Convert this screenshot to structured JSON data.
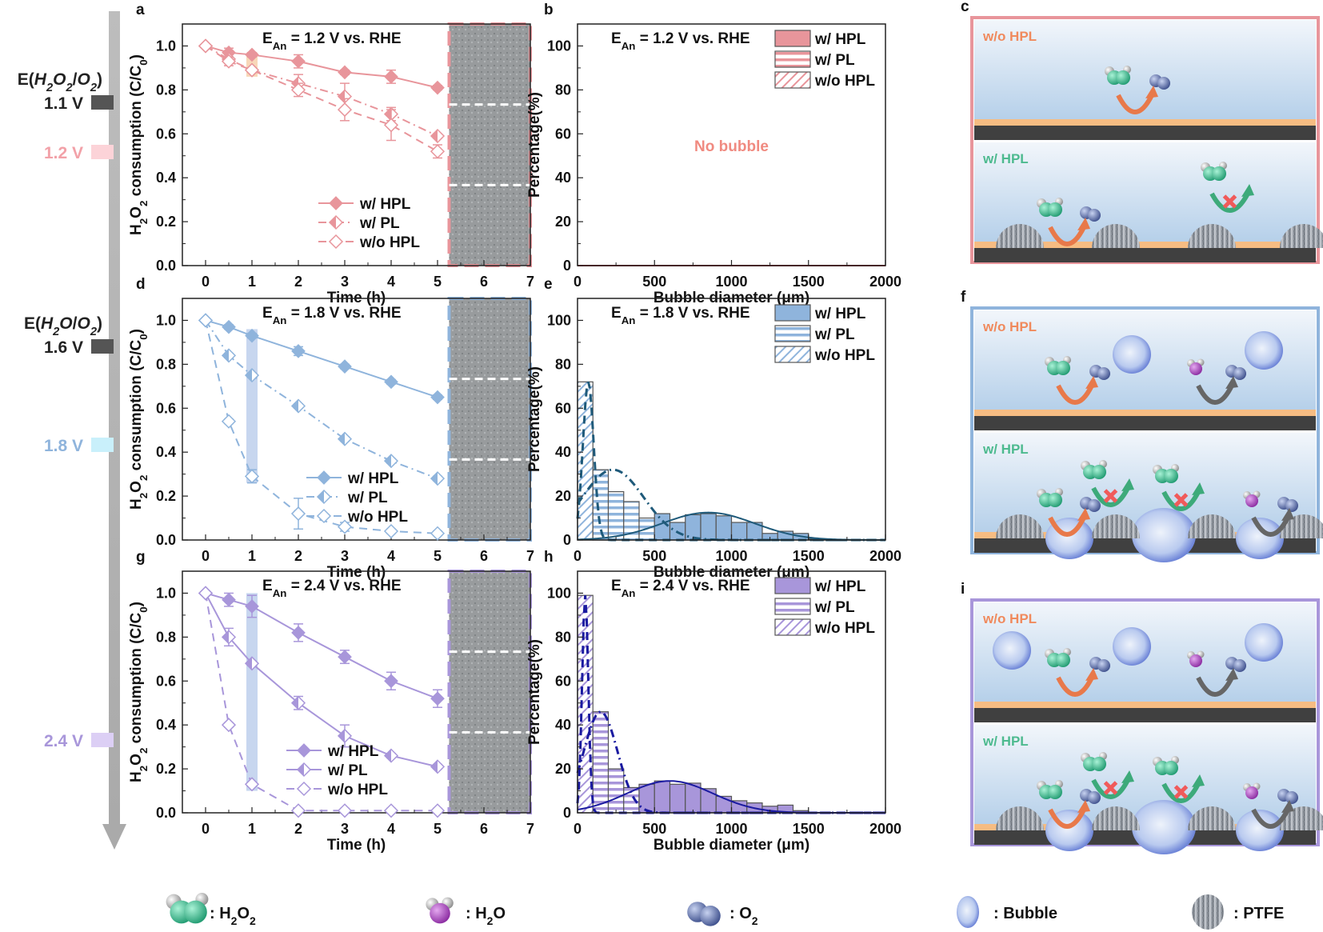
{
  "figure": {
    "potential_scale": {
      "markers": [
        {
          "label_top": "E(H2O2/O2)",
          "value": "1.1 V",
          "color": "#555555",
          "kind": "reference"
        },
        {
          "label_top": "",
          "value": "1.2 V",
          "color": "#f2a1a8",
          "kind": "applied"
        },
        {
          "label_top": "E(H2O/O2)",
          "value": "1.6 V",
          "color": "#555555",
          "kind": "reference"
        },
        {
          "label_top": "",
          "value": "1.8 V",
          "color": "#8fb4dc",
          "kind": "applied"
        },
        {
          "label_top": "",
          "value": "2.4 V",
          "color": "#a896da",
          "kind": "applied"
        }
      ]
    },
    "panel_labels": [
      "a",
      "b",
      "c",
      "d",
      "e",
      "f",
      "g",
      "h",
      "i"
    ],
    "schematics": [
      {
        "panel": "c",
        "border_color": "#e8959b",
        "top_label": "w/o HPL",
        "bottom_label": "w/ HPL",
        "bubbles": false
      },
      {
        "panel": "f",
        "border_color": "#8fb4dc",
        "top_label": "w/o HPL",
        "bottom_label": "w/ HPL",
        "bubbles": true
      },
      {
        "panel": "i",
        "border_color": "#a896da",
        "top_label": "w/o HPL",
        "bottom_label": "w/ HPL",
        "bubbles": true
      }
    ],
    "legend_bottom": [
      {
        "icon": "h2o2-molecule-icon",
        "label": ": H2O2"
      },
      {
        "icon": "h2o-molecule-icon",
        "label": ": H2O"
      },
      {
        "icon": "o2-molecule-icon",
        "label": ": O2"
      },
      {
        "icon": "bubble-icon",
        "label": ": Bubble"
      },
      {
        "icon": "ptfe-icon",
        "label": ": PTFE"
      }
    ],
    "colors": {
      "pink": "#e8959b",
      "blue": "#8fb4dc",
      "purple": "#a896da",
      "orange_label": "#f08a5d",
      "green_label": "#4dba8f",
      "no_bubble_text": "#f08a80"
    }
  },
  "chart_data": [
    {
      "panel": "a",
      "type": "line",
      "title": "EAn = 1.2 V vs. RHE",
      "xlabel": "Time (h)",
      "ylabel": "H2O2 consumption (C/C0)",
      "xlim": [
        -0.5,
        7
      ],
      "ylim": [
        0,
        1.1
      ],
      "xticks": [
        0,
        1,
        2,
        3,
        4,
        5,
        6,
        7
      ],
      "yticks": [
        0.0,
        0.2,
        0.4,
        0.6,
        0.8,
        1.0
      ],
      "color": "#e8959b",
      "legend_position": "bottom-right",
      "series": [
        {
          "name": "w/ HPL",
          "marker": "filled-diamond",
          "line": "solid",
          "x": [
            0,
            0.5,
            1,
            2,
            3,
            4,
            5
          ],
          "y": [
            1.0,
            0.97,
            0.96,
            0.93,
            0.88,
            0.86,
            0.81
          ],
          "err": [
            0,
            0.02,
            0.01,
            0.03,
            0.01,
            0.03,
            0.01
          ]
        },
        {
          "name": "w/ PL",
          "marker": "half-diamond",
          "line": "dash-dot",
          "x": [
            0,
            0.5,
            1,
            2,
            3,
            4,
            5
          ],
          "y": [
            1.0,
            0.94,
            0.89,
            0.83,
            0.77,
            0.69,
            0.59
          ],
          "err": [
            0,
            0.02,
            0.01,
            0.04,
            0.06,
            0.03,
            0.01
          ]
        },
        {
          "name": "w/o HPL",
          "marker": "open-diamond",
          "line": "dash",
          "x": [
            0,
            0.5,
            1,
            2,
            3,
            4,
            5
          ],
          "y": [
            1.0,
            0.93,
            0.89,
            0.8,
            0.71,
            0.64,
            0.52
          ],
          "err": [
            0,
            0.02,
            0.01,
            0.03,
            0.05,
            0.07,
            0.03
          ]
        }
      ],
      "highlight_x": 1
    },
    {
      "panel": "b",
      "type": "bar",
      "title": "EAn = 1.2 V vs. RHE",
      "xlabel": "Bubble diameter (μm)",
      "ylabel": "Percentage(%)",
      "xlim": [
        0,
        2000
      ],
      "ylim": [
        0,
        110
      ],
      "xticks": [
        0,
        500,
        1000,
        1500,
        2000
      ],
      "yticks": [
        0,
        20,
        40,
        60,
        80,
        100
      ],
      "color": "#e8959b",
      "annotation": "No bubble",
      "legend_position": "top-right",
      "series": [
        {
          "name": "w/ HPL",
          "fill": "solid",
          "bins": []
        },
        {
          "name": "w/ PL",
          "fill": "horizontal",
          "bins": []
        },
        {
          "name": "w/o HPL",
          "fill": "diagonal",
          "bins": []
        }
      ]
    },
    {
      "panel": "d",
      "type": "line",
      "title": "EAn = 1.8 V vs. RHE",
      "xlabel": "Time (h)",
      "ylabel": "H2O2 consumption (C/C0)",
      "xlim": [
        -0.5,
        7
      ],
      "ylim": [
        0,
        1.1
      ],
      "xticks": [
        0,
        1,
        2,
        3,
        4,
        5,
        6,
        7
      ],
      "yticks": [
        0.0,
        0.2,
        0.4,
        0.6,
        0.8,
        1.0
      ],
      "color": "#8fb4dc",
      "legend_position": "bottom-right",
      "series": [
        {
          "name": "w/ HPL",
          "marker": "filled-diamond",
          "line": "solid",
          "x": [
            0,
            0.5,
            1,
            2,
            3,
            4,
            5
          ],
          "y": [
            1.0,
            0.97,
            0.93,
            0.86,
            0.79,
            0.72,
            0.65
          ],
          "err": [
            0,
            0.01,
            0.01,
            0.02,
            0.01,
            0.01,
            0.01
          ]
        },
        {
          "name": "w/ PL",
          "marker": "half-diamond",
          "line": "dash-dot",
          "x": [
            0,
            0.5,
            1,
            2,
            3,
            4,
            5
          ],
          "y": [
            1.0,
            0.84,
            0.75,
            0.61,
            0.46,
            0.36,
            0.28
          ],
          "err": [
            0,
            0.01,
            0.01,
            0.01,
            0.01,
            0.01,
            0.01
          ]
        },
        {
          "name": "w/o HPL",
          "marker": "open-diamond",
          "line": "dash",
          "x": [
            0,
            0.5,
            1,
            2,
            3,
            4,
            5
          ],
          "y": [
            1.0,
            0.54,
            0.29,
            0.12,
            0.06,
            0.04,
            0.03
          ],
          "err": [
            0,
            0.01,
            0.03,
            0.07,
            0.02,
            0.01,
            0.01
          ]
        }
      ],
      "highlight_x": 1
    },
    {
      "panel": "e",
      "type": "bar",
      "title": "EAn = 1.8 V vs. RHE",
      "xlabel": "Bubble diameter (μm)",
      "ylabel": "Percentage(%)",
      "xlim": [
        0,
        2000
      ],
      "ylim": [
        0,
        110
      ],
      "xticks": [
        0,
        500,
        1000,
        1500,
        2000
      ],
      "yticks": [
        0,
        20,
        40,
        60,
        80,
        100
      ],
      "color": "#8fb4dc",
      "fit_color": "#1f5a7a",
      "bin_width": 100,
      "legend_position": "top-right",
      "series": [
        {
          "name": "w/ HPL",
          "fill": "solid",
          "bin_starts": [
            500,
            600,
            700,
            800,
            900,
            1000,
            1100,
            1200,
            1300,
            1400,
            1500
          ],
          "values": [
            12,
            8,
            11.5,
            12,
            11,
            8,
            8,
            3,
            4,
            3,
            0.5
          ],
          "fit": {
            "mean": 850,
            "sd": 300,
            "peak": 12.5
          }
        },
        {
          "name": "w/ PL",
          "fill": "horizontal",
          "bin_starts": [
            100,
            200,
            300,
            400,
            500,
            600,
            700,
            800
          ],
          "values": [
            32,
            22,
            17.5,
            10,
            5,
            2,
            1,
            0.5
          ],
          "fit": {
            "mean": 230,
            "sd": 200,
            "peak": 32
          }
        },
        {
          "name": "w/o HPL",
          "fill": "diagonal",
          "bin_starts": [
            0,
            100
          ],
          "values": [
            72,
            28
          ],
          "fit": {
            "mean": 70,
            "sd": 35,
            "peak": 72
          }
        }
      ]
    },
    {
      "panel": "g",
      "type": "line",
      "title": "EAn = 2.4 V vs. RHE",
      "xlabel": "Time (h)",
      "ylabel": "H2O2 consumption (C/C0)",
      "xlim": [
        -0.5,
        7
      ],
      "ylim": [
        0,
        1.1
      ],
      "xticks": [
        0,
        1,
        2,
        3,
        4,
        5,
        6,
        7
      ],
      "yticks": [
        0.0,
        0.2,
        0.4,
        0.6,
        0.8,
        1.0
      ],
      "color": "#a896da",
      "legend_position": "bottom-right",
      "series": [
        {
          "name": "w/ HPL",
          "marker": "filled-diamond",
          "line": "solid",
          "x": [
            0,
            0.5,
            1,
            2,
            3,
            4,
            5
          ],
          "y": [
            1.0,
            0.97,
            0.94,
            0.82,
            0.71,
            0.6,
            0.52
          ],
          "err": [
            0,
            0.03,
            0.05,
            0.04,
            0.03,
            0.04,
            0.04
          ]
        },
        {
          "name": "w/ PL",
          "marker": "half-diamond",
          "line": "solid",
          "x": [
            0,
            0.5,
            1,
            2,
            3,
            4,
            5
          ],
          "y": [
            1.0,
            0.8,
            0.68,
            0.5,
            0.35,
            0.26,
            0.21
          ],
          "err": [
            0,
            0.04,
            0.01,
            0.03,
            0.05,
            0.01,
            0.01
          ]
        },
        {
          "name": "w/o HPL",
          "marker": "open-diamond",
          "line": "dash",
          "x": [
            0,
            0.5,
            1,
            2,
            3,
            4,
            5
          ],
          "y": [
            1.0,
            0.4,
            0.13,
            0.01,
            0.01,
            0.01,
            0.01
          ],
          "err": [
            0,
            0.01,
            0.01,
            0.01,
            0.01,
            0.01,
            0.01
          ]
        }
      ],
      "highlight_x": 1
    },
    {
      "panel": "h",
      "type": "bar",
      "title": "EAn = 2.4 V vs. RHE",
      "xlabel": "Bubble diameter (μm)",
      "ylabel": "Percentage(%)",
      "xlim": [
        0,
        2000
      ],
      "ylim": [
        0,
        110
      ],
      "xticks": [
        0,
        500,
        1000,
        1500,
        2000
      ],
      "yticks": [
        0,
        20,
        40,
        60,
        80,
        100
      ],
      "color": "#a896da",
      "fit_color": "#1a1aa0",
      "bin_width": 100,
      "legend_position": "top-right",
      "series": [
        {
          "name": "w/ HPL",
          "fill": "solid",
          "bin_starts": [
            400,
            500,
            600,
            700,
            800,
            900,
            1000,
            1100,
            1200,
            1300,
            1400
          ],
          "values": [
            13,
            14.5,
            13,
            13.5,
            11,
            7.5,
            5.5,
            4.5,
            3,
            3.5,
            1
          ],
          "fit": {
            "mean": 600,
            "sd": 280,
            "peak": 14.5
          }
        },
        {
          "name": "w/ PL",
          "fill": "horizontal",
          "bin_starts": [
            100,
            200,
            300,
            400,
            500,
            600,
            700
          ],
          "values": [
            46,
            20,
            11.5,
            6,
            3,
            1.5,
            0.5
          ],
          "fit": {
            "mean": 150,
            "sd": 110,
            "peak": 46
          }
        },
        {
          "name": "w/o HPL",
          "fill": "diagonal",
          "bin_starts": [
            0,
            100
          ],
          "values": [
            99,
            1
          ],
          "fit": {
            "mean": 50,
            "sd": 20,
            "peak": 99
          }
        }
      ]
    }
  ]
}
